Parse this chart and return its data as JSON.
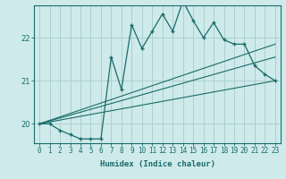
{
  "xlabel": "Humidex (Indice chaleur)",
  "ylabel": "",
  "background_color": "#ceeaea",
  "grid_color": "#aed0d0",
  "line_color": "#1a6b6b",
  "xlim": [
    -0.5,
    23.5
  ],
  "ylim": [
    19.55,
    22.75
  ],
  "yticks": [
    20,
    21,
    22
  ],
  "xticks": [
    0,
    1,
    2,
    3,
    4,
    5,
    6,
    7,
    8,
    9,
    10,
    11,
    12,
    13,
    14,
    15,
    16,
    17,
    18,
    19,
    20,
    21,
    22,
    23
  ],
  "main_x": [
    0,
    1,
    2,
    3,
    4,
    5,
    6,
    7,
    8,
    9,
    10,
    11,
    12,
    13,
    14,
    15,
    16,
    17,
    18,
    19,
    20,
    21,
    22,
    23
  ],
  "main_y": [
    20.0,
    20.0,
    19.85,
    19.75,
    19.65,
    19.65,
    19.65,
    21.55,
    20.8,
    22.3,
    21.75,
    22.15,
    22.55,
    22.15,
    22.85,
    22.4,
    22.0,
    22.35,
    21.95,
    21.85,
    21.85,
    21.35,
    21.15,
    21.0
  ],
  "line1_x": [
    0,
    23
  ],
  "line1_y": [
    20.0,
    21.0
  ],
  "line2_x": [
    0,
    23
  ],
  "line2_y": [
    20.0,
    21.55
  ],
  "line3_x": [
    0,
    23
  ],
  "line3_y": [
    20.0,
    21.85
  ],
  "tick_fontsize": 5.5,
  "xlabel_fontsize": 6.5
}
